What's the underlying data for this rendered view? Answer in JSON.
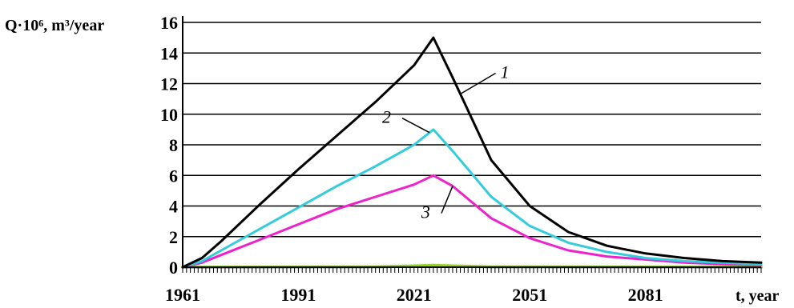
{
  "chart_data": {
    "type": "line",
    "title": "",
    "ylabel": "Q·10⁶, m³/year",
    "xlabel": "t, year",
    "xlim": [
      1961,
      2111
    ],
    "ylim": [
      0,
      16
    ],
    "x_ticks": [
      1961,
      1991,
      2021,
      2051,
      2081
    ],
    "x_tick_labels": [
      "1961",
      "1991",
      "2021",
      "2051",
      "2081"
    ],
    "y_ticks": [
      0,
      2,
      4,
      6,
      8,
      10,
      12,
      14,
      16
    ],
    "y_tick_labels": [
      "0",
      "2",
      "4",
      "6",
      "8",
      "10",
      "12",
      "14",
      "16"
    ],
    "grid": "horizontal",
    "series": [
      {
        "name": "1",
        "color": "#000000",
        "x": [
          1961,
          1966,
          1971,
          1981,
          1991,
          2001,
          2011,
          2021,
          2026,
          2031,
          2041,
          2051,
          2061,
          2071,
          2081,
          2091,
          2101,
          2111
        ],
        "values": [
          0,
          0.6,
          1.7,
          4.1,
          6.4,
          8.6,
          10.8,
          13.2,
          15.0,
          12.4,
          7.0,
          4.0,
          2.3,
          1.4,
          0.9,
          0.6,
          0.4,
          0.3
        ]
      },
      {
        "name": "2",
        "color": "#33CCDD",
        "x": [
          1961,
          1966,
          1971,
          1981,
          1991,
          2001,
          2011,
          2021,
          2026,
          2031,
          2041,
          2051,
          2061,
          2071,
          2081,
          2091,
          2101,
          2111
        ],
        "values": [
          0,
          0.4,
          1.1,
          2.5,
          3.9,
          5.3,
          6.6,
          8.0,
          9.0,
          7.6,
          4.6,
          2.7,
          1.6,
          1.0,
          0.6,
          0.4,
          0.3,
          0.2
        ]
      },
      {
        "name": "3",
        "color": "#EE22CC",
        "x": [
          1961,
          1966,
          1971,
          1981,
          1991,
          2001,
          2011,
          2021,
          2026,
          2031,
          2041,
          2051,
          2061,
          2071,
          2081,
          2091,
          2101,
          2111
        ],
        "values": [
          0,
          0.3,
          0.8,
          1.8,
          2.8,
          3.8,
          4.6,
          5.4,
          6.0,
          5.3,
          3.2,
          1.9,
          1.1,
          0.7,
          0.5,
          0.3,
          0.2,
          0.15
        ]
      },
      {
        "name": "",
        "color": "#99CC33",
        "x": [
          1961,
          2011,
          2021,
          2026,
          2031,
          2041,
          2111
        ],
        "values": [
          0,
          0.02,
          0.08,
          0.12,
          0.08,
          0.02,
          0
        ]
      }
    ],
    "annotations": [
      {
        "text": "1",
        "series": "1",
        "at_x": 2033
      },
      {
        "text": "2",
        "series": "2",
        "at_x": 2025
      },
      {
        "text": "3",
        "series": "3",
        "at_x": 2031
      }
    ]
  }
}
